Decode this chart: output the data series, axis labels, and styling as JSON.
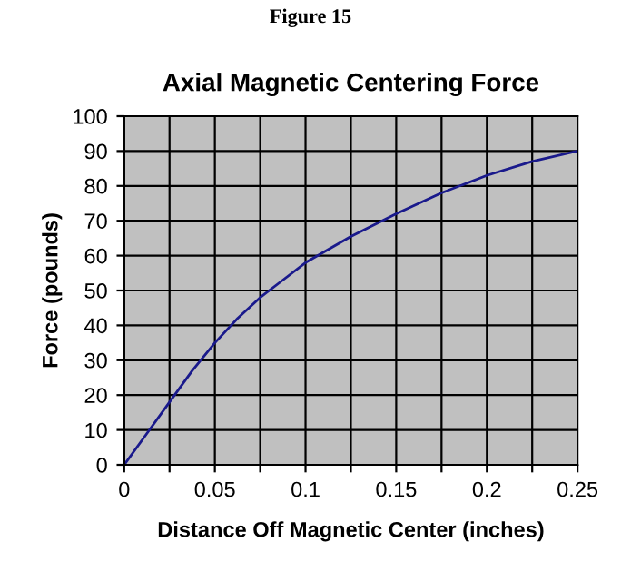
{
  "chart_data": {
    "type": "line",
    "title": "Axial Magnetic Centering Force",
    "xlabel": "Distance Off Magnetic Center (inches)",
    "ylabel": "Force (pounds)",
    "annotations": [
      "Figure 15"
    ],
    "x": [
      0,
      0.0125,
      0.025,
      0.0375,
      0.05,
      0.0625,
      0.075,
      0.0875,
      0.1,
      0.125,
      0.15,
      0.175,
      0.2,
      0.225,
      0.25
    ],
    "series": [
      {
        "color": "#1a1a8c",
        "values": [
          0,
          9,
          18,
          27,
          35,
          42,
          48,
          53,
          58,
          65.5,
          72,
          78,
          83,
          87,
          90
        ]
      }
    ],
    "xlim": [
      0,
      0.25
    ],
    "ylim": [
      0,
      100
    ],
    "xticks": [
      0,
      {
        "value": 0.025,
        "label": null
      },
      0.05,
      {
        "value": 0.075,
        "label": null
      },
      0.1,
      {
        "value": 0.125,
        "label": null
      },
      0.15,
      {
        "value": 0.175,
        "label": null
      },
      0.2,
      {
        "value": 0.225,
        "label": null
      },
      0.25
    ],
    "yticks": [
      0,
      10,
      20,
      30,
      40,
      50,
      60,
      70,
      80,
      90,
      100
    ],
    "grid": true,
    "marker": "none",
    "line_style": "solid"
  }
}
